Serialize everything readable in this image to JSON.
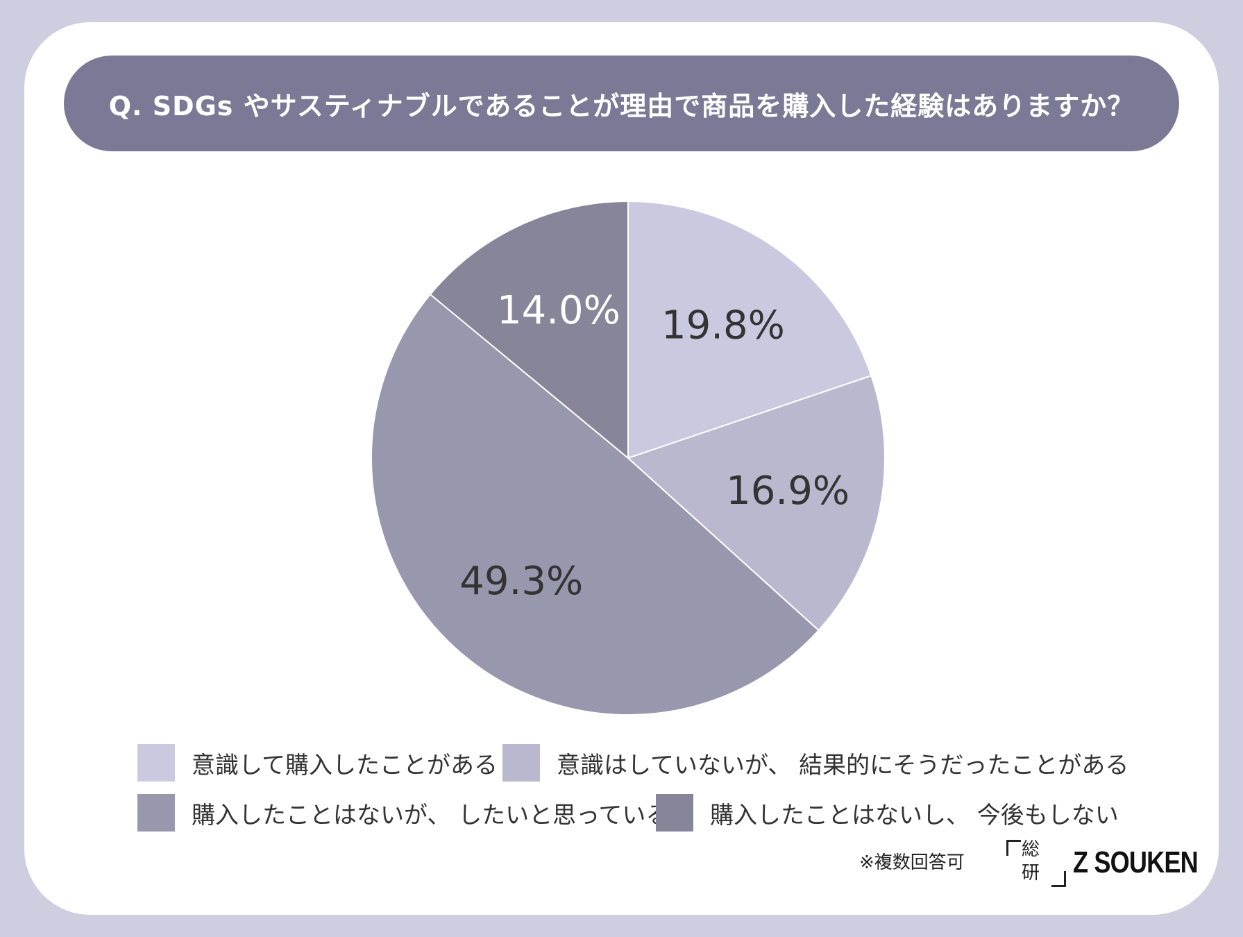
{
  "title": "Q. SDGs やサスティナブルであることが理由で商品を購入した経験はありますか？",
  "note": "※複数回答可",
  "logo": {
    "kanji_top": "総",
    "kanji_bottom": "研",
    "text": "Z SOUKEN"
  },
  "colors": {
    "background": "#cfcde0",
    "title_bar": "#7c7996"
  },
  "chart_data": {
    "type": "pie",
    "title": "Q. SDGs やサスティナブルであることが理由で商品を購入した経験はありますか？",
    "legend_position": "bottom",
    "slices": [
      {
        "label": "意識して購入したことがある",
        "value": 19.8,
        "display": "19.8%",
        "color": "#cbc9e0"
      },
      {
        "label": "意識はしていないが、 結果的にそうだったことがある",
        "value": 16.9,
        "display": "16.9%",
        "color": "#b9b8ce"
      },
      {
        "label": "購入したことはないが、 したいと思っている",
        "value": 49.3,
        "display": "49.3%",
        "color": "#9797ad"
      },
      {
        "label": "購入したことはないし、 今後もしない",
        "value": 14.0,
        "display": "14.0%",
        "color": "#868599"
      }
    ]
  }
}
